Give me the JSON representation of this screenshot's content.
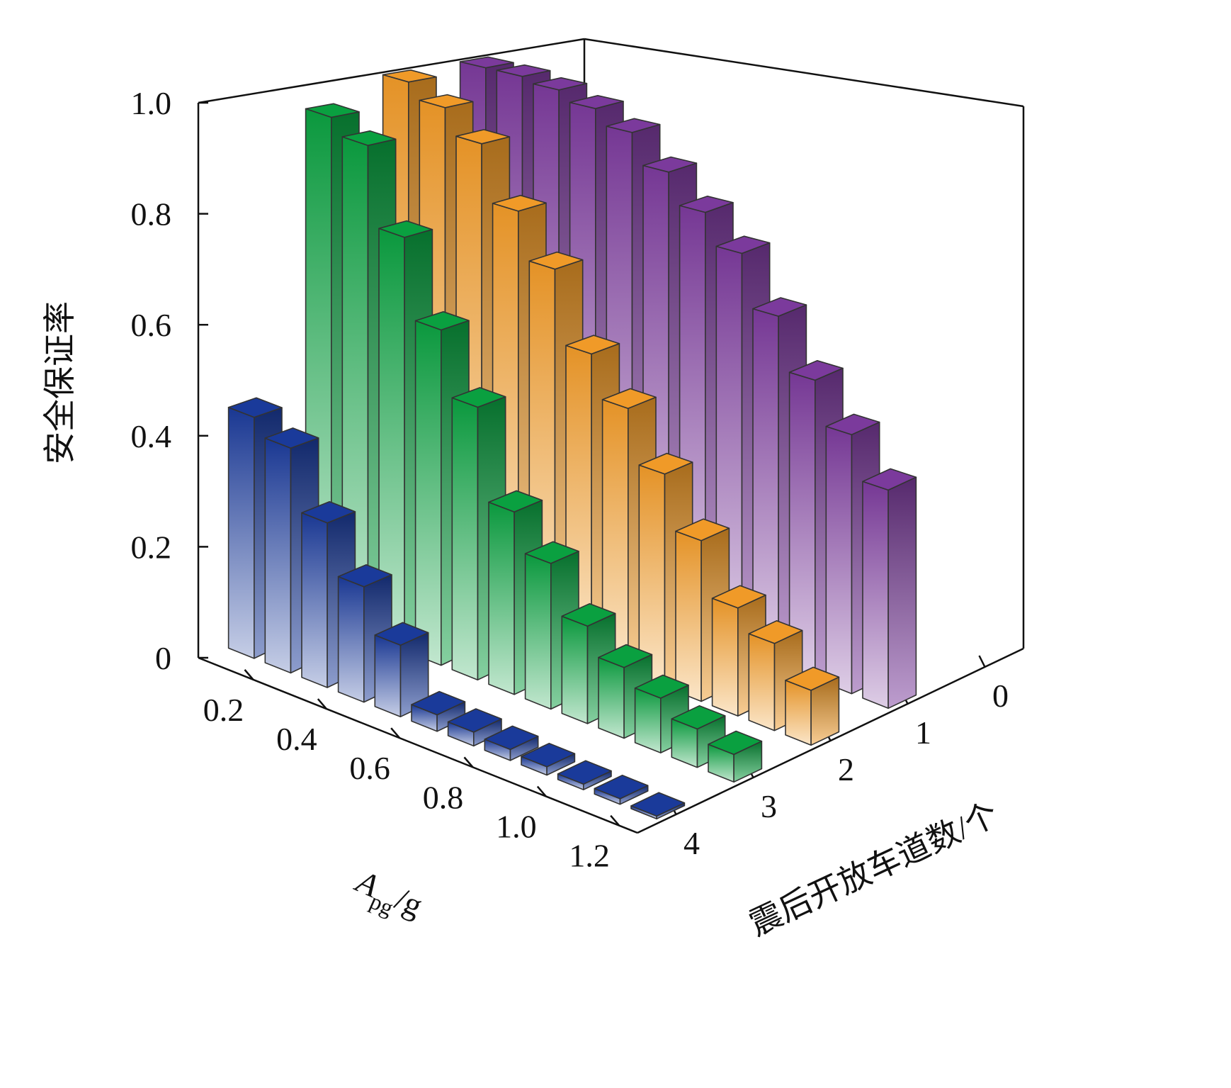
{
  "chart_data": {
    "type": "bar3d",
    "y_label": "安全保证率",
    "x_label": {
      "main": "A",
      "sub": "pg",
      "unit": "/g"
    },
    "z_label": "震后开放车道数/个",
    "x": [
      0.1,
      0.2,
      0.3,
      0.4,
      0.5,
      0.6,
      0.7,
      0.8,
      0.9,
      1.0,
      1.1,
      1.2
    ],
    "xlim": [
      0.05,
      1.25
    ],
    "xticks": [
      0.2,
      0.4,
      0.6,
      0.8,
      {
        "value": 1,
        "label": "1.0"
      },
      1.2
    ],
    "ylim": [
      0,
      1
    ],
    "yticks": [
      0,
      0.2,
      0.4,
      0.6,
      0.8,
      {
        "value": 1,
        "label": "1.0"
      }
    ],
    "zlim": [
      -0.5,
      4.5
    ],
    "zticks": [
      0,
      1,
      2,
      3,
      4
    ],
    "series": [
      {
        "color": "#7b3a9c",
        "values": [
          1.0,
          1.0,
          0.99,
          0.97,
          0.94,
          0.88,
          0.82,
          0.76,
          0.66,
          0.56,
          0.48,
          0.4
        ]
      },
      {
        "color": "#f09a28",
        "values": [
          1.0,
          0.97,
          0.92,
          0.81,
          0.72,
          0.58,
          0.5,
          0.4,
          0.3,
          0.2,
          0.16,
          0.1
        ]
      },
      {
        "color": "#0aa040",
        "values": [
          0.96,
          0.93,
          0.78,
          0.63,
          0.51,
          0.34,
          0.27,
          0.18,
          0.13,
          0.1,
          0.07,
          0.05
        ]
      },
      {
        "color": "#1a3a9a",
        "values": [
          0.44,
          0.41,
          0.3,
          0.21,
          0.13,
          0.03,
          0.025,
          0.02,
          0.015,
          0.01,
          0.01,
          0.005
        ]
      }
    ]
  }
}
